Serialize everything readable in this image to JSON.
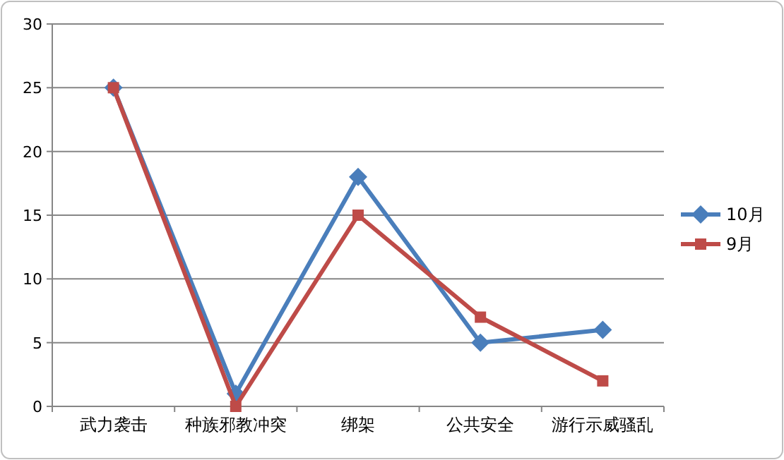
{
  "chart_data": {
    "type": "line",
    "categories": [
      "武力袭击",
      "种族邪教冲突",
      "绑架",
      "公共安全",
      "游行示威骚乱"
    ],
    "series": [
      {
        "name": "10月",
        "color": "#4a7ebb",
        "marker": "diamond",
        "values": [
          25,
          1,
          18,
          5,
          6
        ]
      },
      {
        "name": "9月",
        "color": "#be4b48",
        "marker": "square",
        "values": [
          25,
          0,
          15,
          7,
          2
        ]
      }
    ],
    "ylim": [
      0,
      30
    ],
    "yticks": [
      0,
      5,
      10,
      15,
      20,
      25,
      30
    ],
    "grid": "y",
    "legend": "right",
    "line_style": "solid"
  }
}
